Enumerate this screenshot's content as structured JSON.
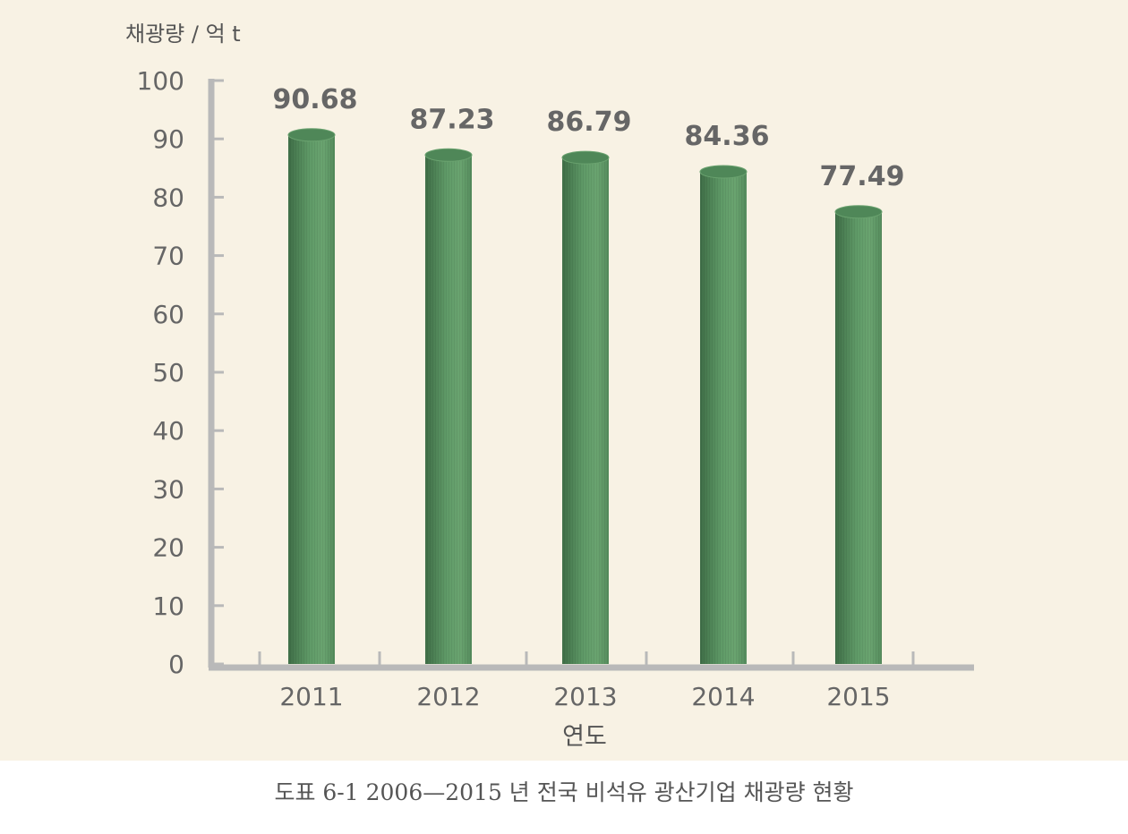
{
  "chart_data": {
    "type": "bar",
    "ylabel": "채광량 / 억 t",
    "xlabel": "연도",
    "categories": [
      "2011",
      "2012",
      "2013",
      "2014",
      "2015"
    ],
    "values": [
      90.68,
      87.23,
      86.79,
      84.36,
      77.49
    ],
    "data_labels": [
      "90.68",
      "87.23",
      "86.79",
      "84.36",
      "77.49"
    ],
    "ylim": [
      0,
      100
    ],
    "yticks": [
      0,
      10,
      20,
      30,
      40,
      50,
      60,
      70,
      80,
      90,
      100
    ],
    "grid": false,
    "legend": "none",
    "bar_style": "3d-cylinder",
    "colors": {
      "bar": "#5f9a67",
      "bar_dark": "#3f6e47",
      "bar_top": "#4f8758",
      "axis": "#b9b9b9",
      "text": "#666666",
      "panel": "#f8f2e4"
    }
  },
  "caption": "도표 6-1 2006—2015 년 전국 비석유 광산기업 채광량 현황"
}
